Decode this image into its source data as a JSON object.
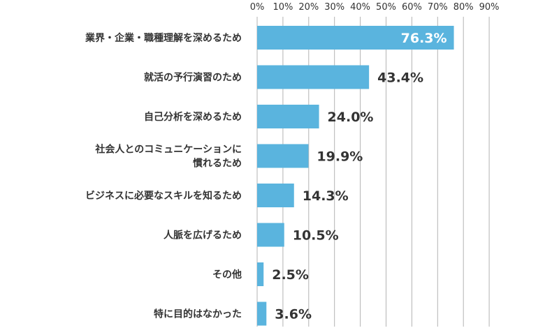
{
  "chart_data": {
    "type": "bar",
    "orientation": "horizontal",
    "title": "",
    "xlabel": "",
    "ylabel": "",
    "xlim": [
      0,
      90
    ],
    "tick_labels": [
      "0%",
      "10%",
      "20%",
      "30%",
      "40%",
      "50%",
      "60%",
      "70%",
      "80%",
      "90%"
    ],
    "grid": true,
    "legend": "none",
    "bar_color": "#5ab4de",
    "categories": [
      [
        "業界・企業・職種理解を深めるため"
      ],
      [
        "就活の予行演習のため"
      ],
      [
        "自己分析を深めるため"
      ],
      [
        "社会人とのコミュニケーションに",
        "慣れるため"
      ],
      [
        "ビジネスに必要なスキルを知るため"
      ],
      [
        "人脈を広げるため"
      ],
      [
        "その他"
      ],
      [
        "特に目的はなかった"
      ]
    ],
    "values": [
      76.3,
      43.4,
      24.0,
      19.9,
      14.3,
      10.5,
      2.5,
      3.6
    ],
    "value_labels": [
      "76.3%",
      "43.4%",
      "24.0%",
      "19.9%",
      "14.3%",
      "10.5%",
      "2.5%",
      "3.6%"
    ]
  }
}
